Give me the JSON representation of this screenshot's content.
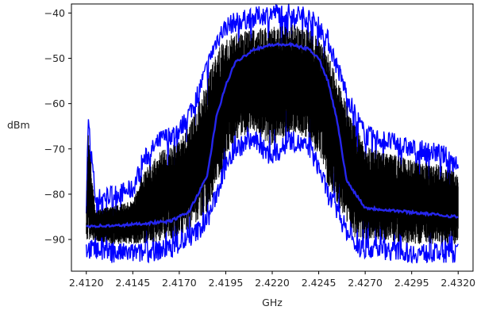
{
  "chart_data": {
    "type": "line",
    "title": "",
    "xlabel": "GHz",
    "ylabel": "dBm",
    "xlim": [
      2.4112,
      2.4328
    ],
    "ylim": [
      -97,
      -38
    ],
    "xticks": [
      2.412,
      2.4145,
      2.417,
      2.4195,
      2.422,
      2.4245,
      2.427,
      2.4295,
      2.432
    ],
    "xtick_labels": [
      "2.4120",
      "2.4145",
      "2.4170",
      "2.4195",
      "2.4220",
      "2.4245",
      "2.4270",
      "2.4295",
      "2.4320"
    ],
    "yticks": [
      -90,
      -80,
      -70,
      -60,
      -50,
      -40
    ],
    "ytick_labels": [
      "−90",
      "−80",
      "−70",
      "−60",
      "−50",
      "−40"
    ],
    "grid": false,
    "series": [
      {
        "role": "max-hold envelope",
        "color": "#0000ff",
        "x": [
          2.412,
          2.4121,
          2.4125,
          2.4135,
          2.4145,
          2.415,
          2.416,
          2.417,
          2.4178,
          2.4185,
          2.419,
          2.4195,
          2.42,
          2.421,
          2.422,
          2.423,
          2.424,
          2.4245,
          2.425,
          2.4255,
          2.4262,
          2.427,
          2.428,
          2.4295,
          2.431,
          2.432
        ],
        "y": [
          -82,
          -64,
          -81,
          -80,
          -79,
          -73,
          -68,
          -66,
          -60,
          -52,
          -46,
          -43,
          -42,
          -41,
          -40,
          -40,
          -41,
          -43,
          -46,
          -52,
          -60,
          -67,
          -68,
          -70,
          -71,
          -73
        ]
      },
      {
        "role": "min-hold envelope",
        "color": "#0000ff",
        "x": [
          2.412,
          2.4135,
          2.415,
          2.4165,
          2.4175,
          2.4185,
          2.419,
          2.4195,
          2.42,
          2.421,
          2.422,
          2.423,
          2.424,
          2.4245,
          2.425,
          2.426,
          2.4265,
          2.4275,
          2.4295,
          2.432
        ],
        "y": [
          -92,
          -93,
          -93,
          -92,
          -90,
          -86,
          -80,
          -74,
          -70,
          -68,
          -72,
          -68,
          -70,
          -74,
          -80,
          -88,
          -92,
          -92,
          -93,
          -93
        ]
      },
      {
        "role": "average trace",
        "color": "#2626ee",
        "x": [
          2.412,
          2.4135,
          2.415,
          2.4165,
          2.4175,
          2.4185,
          2.419,
          2.4195,
          2.42,
          2.421,
          2.422,
          2.423,
          2.424,
          2.4245,
          2.425,
          2.4255,
          2.426,
          2.427,
          2.4295,
          2.432
        ],
        "y": [
          -87,
          -87,
          -86.5,
          -86,
          -84,
          -76,
          -63,
          -56,
          -51,
          -48,
          -47,
          -47,
          -48,
          -50,
          -55,
          -64,
          -77,
          -83,
          -84,
          -85
        ]
      }
    ]
  }
}
